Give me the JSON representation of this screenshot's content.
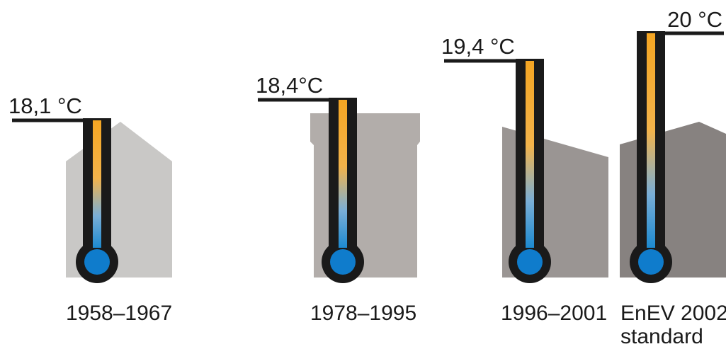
{
  "periods": [
    {
      "temperature": "18,1 °C",
      "period": [
        "1958–1967"
      ],
      "house_color": "#c9c8c6"
    },
    {
      "temperature": "18,4°C",
      "period": [
        "1978–1995"
      ],
      "house_color": "#b2adaa"
    },
    {
      "temperature": "19,4 °C",
      "period": [
        "1996–2001"
      ],
      "house_color": "#9a9593"
    },
    {
      "temperature": "20 °C",
      "period": [
        "EnEV 2002",
        "standard"
      ],
      "house_color": "#878280"
    }
  ],
  "colors": {
    "thermometer_outline": "#1a1a1a",
    "gradient_top": "#f5a623",
    "gradient_bottom": "#1d8ad0",
    "bulb": "#0f7ccc"
  }
}
